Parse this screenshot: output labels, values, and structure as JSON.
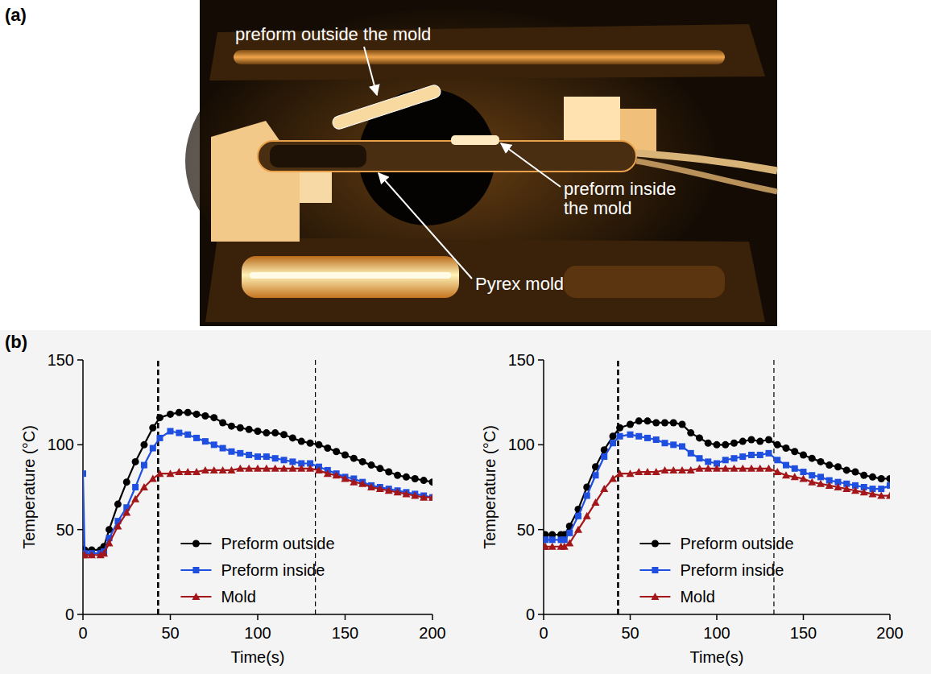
{
  "chart_data": [
    {
      "type": "line",
      "x_label": "Time(s)",
      "y_label": "Temperature (°C)",
      "x": [
        0,
        1,
        5,
        10,
        12,
        15,
        20,
        25,
        30,
        35,
        40,
        44,
        50,
        55,
        60,
        65,
        70,
        75,
        80,
        85,
        90,
        95,
        100,
        105,
        110,
        115,
        120,
        125,
        130,
        135,
        140,
        145,
        150,
        155,
        160,
        165,
        170,
        175,
        180,
        185,
        190,
        195,
        200
      ],
      "xlim": [
        0,
        200
      ],
      "xticks": [
        0,
        50,
        100,
        150,
        200
      ],
      "ylim": [
        0,
        150
      ],
      "yticks": [
        0,
        50,
        100,
        150
      ],
      "legend": "lower center",
      "reference_lines": [
        43,
        133
      ],
      "series": [
        {
          "name": "Preform outside",
          "color": "#000000",
          "marker": "circle",
          "values": [
            38,
            38,
            38,
            38,
            40,
            50,
            65,
            78,
            90,
            100,
            110,
            116,
            118,
            119,
            119,
            118,
            117,
            116,
            113,
            111,
            110,
            109,
            108,
            107,
            107,
            106,
            104,
            102,
            101,
            100,
            98,
            96,
            94,
            92,
            90,
            88,
            86,
            84,
            82,
            81,
            80,
            79,
            78
          ]
        },
        {
          "name": "Preform inside",
          "color": "#1f4fe0",
          "marker": "square",
          "values": [
            83,
            36,
            36,
            36,
            37,
            45,
            55,
            63,
            75,
            88,
            98,
            104,
            108,
            107,
            106,
            104,
            102,
            100,
            98,
            96,
            95,
            94,
            93,
            93,
            92,
            91,
            90,
            89,
            89,
            87,
            85,
            83,
            81,
            80,
            78,
            76,
            75,
            74,
            73,
            72,
            71,
            70,
            69
          ]
        },
        {
          "name": "Mold",
          "color": "#a3161a",
          "marker": "triangle",
          "values": [
            35,
            35,
            35,
            35,
            36,
            42,
            52,
            60,
            68,
            75,
            80,
            83,
            83,
            84,
            84,
            84,
            85,
            85,
            85,
            85,
            86,
            86,
            86,
            86,
            86,
            86,
            86,
            86,
            86,
            85,
            83,
            82,
            80,
            78,
            77,
            75,
            74,
            73,
            72,
            71,
            70,
            69,
            69
          ]
        }
      ]
    },
    {
      "type": "line",
      "x_label": "Time(s)",
      "y_label": "Temperature (°C)",
      "x": [
        0,
        1,
        5,
        10,
        12,
        15,
        20,
        25,
        30,
        35,
        40,
        44,
        50,
        55,
        60,
        65,
        70,
        75,
        80,
        85,
        90,
        95,
        100,
        105,
        110,
        115,
        120,
        125,
        130,
        135,
        140,
        145,
        150,
        155,
        160,
        165,
        170,
        175,
        180,
        185,
        190,
        195,
        200
      ],
      "xlim": [
        0,
        200
      ],
      "xticks": [
        0,
        50,
        100,
        150,
        200
      ],
      "ylim": [
        0,
        150
      ],
      "yticks": [
        0,
        50,
        100,
        150
      ],
      "legend": "lower center",
      "reference_lines": [
        43,
        133
      ],
      "series": [
        {
          "name": "Preform outside",
          "color": "#000000",
          "marker": "circle",
          "values": [
            47,
            47,
            47,
            47,
            47,
            52,
            62,
            75,
            87,
            97,
            105,
            110,
            112,
            114,
            114,
            113,
            113,
            113,
            112,
            107,
            104,
            101,
            100,
            100,
            101,
            102,
            103,
            102,
            103,
            100,
            98,
            96,
            94,
            92,
            90,
            88,
            87,
            85,
            84,
            82,
            81,
            80,
            80
          ]
        },
        {
          "name": "Preform inside",
          "color": "#1f4fe0",
          "marker": "square",
          "values": [
            44,
            44,
            44,
            44,
            44,
            48,
            58,
            70,
            82,
            93,
            101,
            105,
            106,
            105,
            104,
            103,
            101,
            100,
            99,
            95,
            92,
            90,
            89,
            91,
            92,
            93,
            94,
            94,
            95,
            91,
            88,
            86,
            84,
            82,
            81,
            79,
            78,
            77,
            76,
            75,
            74,
            74,
            76
          ]
        },
        {
          "name": "Mold",
          "color": "#a3161a",
          "marker": "triangle",
          "values": [
            40,
            40,
            40,
            40,
            40,
            42,
            50,
            58,
            66,
            74,
            80,
            83,
            83,
            84,
            84,
            84,
            85,
            85,
            85,
            85,
            86,
            86,
            86,
            86,
            86,
            86,
            86,
            86,
            86,
            84,
            82,
            81,
            80,
            78,
            77,
            76,
            75,
            74,
            73,
            72,
            71,
            70,
            70
          ]
        }
      ]
    }
  ],
  "figure": {
    "panel_a": "(a)",
    "panel_b": "(b)",
    "photo_labels": [
      "preform outside the mold",
      "preform inside the mold",
      "Pyrex mold"
    ]
  }
}
